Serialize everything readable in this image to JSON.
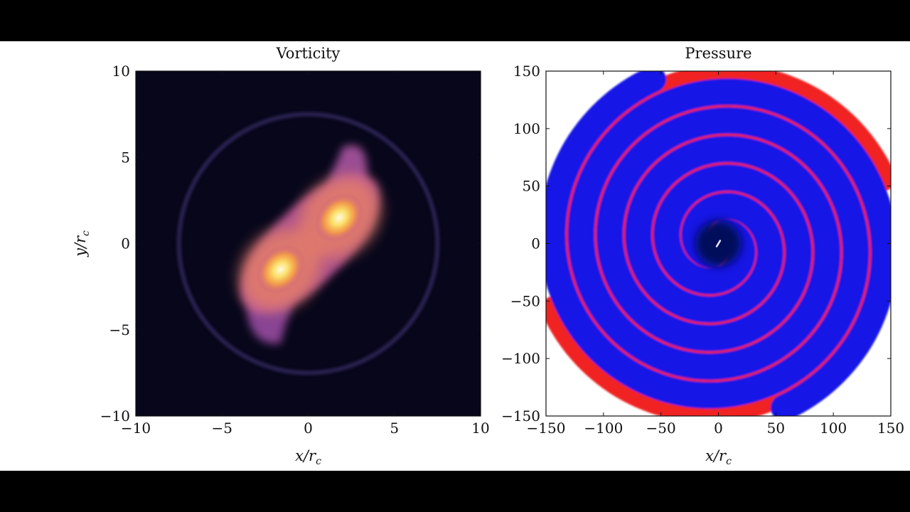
{
  "chart_data": [
    {
      "type": "heatmap",
      "title": "Vorticity",
      "xlabel": "x/r_c",
      "ylabel": "y/r_c",
      "xlim": [
        -10,
        10
      ],
      "ylim": [
        -10,
        10
      ],
      "xticks": [
        -10,
        -5,
        0,
        5,
        10
      ],
      "yticks": [
        -10,
        -5,
        0,
        5,
        10
      ],
      "xtick_labels": [
        "−10",
        "−5",
        "0",
        "5",
        "10"
      ],
      "ytick_labels": [
        "−10",
        "−5",
        "0",
        "5",
        "10"
      ],
      "colormap": [
        "#07061a",
        "#3a1f6e",
        "#9a4fb0",
        "#e07a8a",
        "#f7c24a",
        "#fffbe0"
      ],
      "features": {
        "vortex_cores": [
          {
            "x": 1.8,
            "y": 1.5,
            "intensity": 1.0
          },
          {
            "x": -1.6,
            "y": -1.5,
            "intensity": 1.0
          }
        ],
        "ring_radius": 7.5,
        "orientation_deg": 45
      },
      "grid": false
    },
    {
      "type": "heatmap",
      "title": "Pressure",
      "xlabel": "x/r_c",
      "ylabel": "",
      "xlim": [
        -150,
        150
      ],
      "ylim": [
        -150,
        150
      ],
      "xticks": [
        -150,
        -100,
        -50,
        0,
        50,
        100,
        150
      ],
      "yticks": [
        -150,
        -100,
        -50,
        0,
        50,
        100,
        150
      ],
      "xtick_labels": [
        "−150",
        "−100",
        "−50",
        "0",
        "50",
        "100",
        "150"
      ],
      "ytick_labels": [
        "−150",
        "−100",
        "−50",
        "0",
        "50",
        "100",
        "150"
      ],
      "colormap": [
        "#050a5a",
        "#1010e0",
        "#ffffff",
        "#f02020",
        "#7a0000"
      ],
      "features": {
        "pattern": "two-armed spiral",
        "spiral_arms": 2,
        "spiral_pitch": 100,
        "center_color": "#050a5a"
      },
      "grid": false
    }
  ]
}
